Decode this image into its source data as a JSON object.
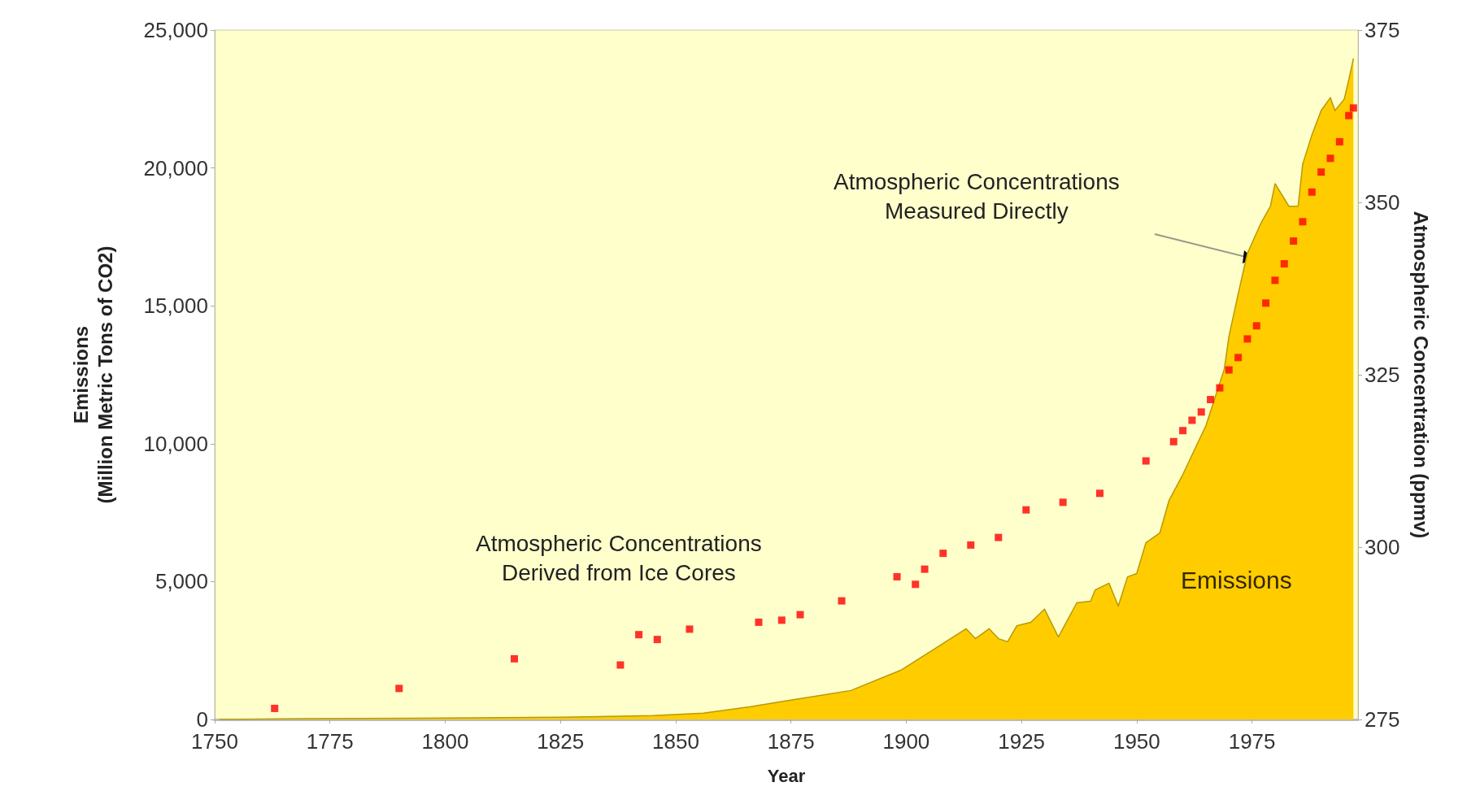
{
  "chart_data": {
    "type": "area",
    "xlabel": "Year",
    "ylabel": "Emissions\n(Million Metric Tons of CO2)",
    "y2label": "Atmospheric Concentration (ppmv)",
    "annotations": [
      "Atmospheric Concentrations\nDerived from Ice Cores",
      "Atmospheric Concentrations\nMeasured Directly"
    ],
    "xlim": [
      1750,
      1998
    ],
    "xticks": [
      1750,
      1775,
      1800,
      1825,
      1850,
      1875,
      1900,
      1925,
      1950,
      1975
    ],
    "ylim": [
      0,
      25000
    ],
    "yticks": [
      0,
      {
        "value": 5000,
        "label": "5,000"
      },
      {
        "value": 10000,
        "label": "10,000"
      },
      {
        "value": 15000,
        "label": "15,000"
      },
      {
        "value": 20000,
        "label": "20,000"
      },
      {
        "value": 25000,
        "label": "25,000"
      }
    ],
    "y2lim": [
      275,
      375
    ],
    "y2ticks": [
      275,
      300,
      325,
      350,
      375
    ],
    "grid": false,
    "series": [
      {
        "name": "Emissions",
        "color": "#ffcc00",
        "x": [
          1751,
          1770,
          1800,
          1825,
          1845,
          1856,
          1866,
          1876,
          1888,
          1899,
          1907,
          1913,
          1915,
          1918,
          1920,
          1922,
          1924,
          1927,
          1930,
          1933,
          1937,
          1940,
          1941,
          1944,
          1946,
          1948,
          1950,
          1952,
          1955,
          1957,
          1960,
          1963,
          1965,
          1969,
          1970,
          1972,
          1974,
          1977,
          1979,
          1980,
          1983,
          1985,
          1986,
          1988,
          1990,
          1992,
          1993,
          1995,
          1996,
          1997
        ],
        "values": [
          0,
          30,
          50,
          80,
          140,
          230,
          460,
          730,
          1050,
          1800,
          2650,
          3290,
          2930,
          3290,
          2930,
          2820,
          3400,
          3520,
          4000,
          2990,
          4230,
          4290,
          4700,
          4940,
          4110,
          5170,
          5290,
          6410,
          6760,
          7940,
          8880,
          9950,
          10650,
          12710,
          13890,
          15430,
          16900,
          18020,
          18610,
          19430,
          18610,
          18610,
          20140,
          21200,
          22080,
          22550,
          22080,
          22490,
          23200,
          23970
        ]
      },
      {
        "type": "scatter",
        "marker": "square",
        "axis": "y2",
        "color": "#ff0000",
        "x": [
          1763,
          1790,
          1815,
          1838,
          1842,
          1846,
          1853,
          1868,
          1873,
          1877,
          1886,
          1898,
          1902,
          1904,
          1908,
          1914,
          1920,
          1926,
          1934,
          1942,
          1952
        ],
        "values": [
          276.6,
          279.5,
          283.8,
          282.9,
          287.3,
          286.6,
          288.1,
          289.1,
          289.4,
          290.2,
          292.2,
          295.7,
          294.6,
          296.8,
          299.1,
          300.3,
          301.4,
          305.4,
          306.5,
          307.8,
          312.5
        ]
      },
      {
        "type": "scatter",
        "marker": "square",
        "axis": "y2",
        "color": "#ff0000",
        "x": [
          1958,
          1960,
          1962,
          1964,
          1966,
          1968,
          1970,
          1972,
          1974,
          1976,
          1978,
          1980,
          1982,
          1984,
          1986,
          1988,
          1990,
          1992,
          1994,
          1996,
          1997
        ],
        "values": [
          315.3,
          316.9,
          318.4,
          319.6,
          321.4,
          323.1,
          325.7,
          327.5,
          330.2,
          332.1,
          335.4,
          338.7,
          341.1,
          344.4,
          347.2,
          351.5,
          354.4,
          356.4,
          358.8,
          362.6,
          363.7
        ]
      }
    ]
  }
}
